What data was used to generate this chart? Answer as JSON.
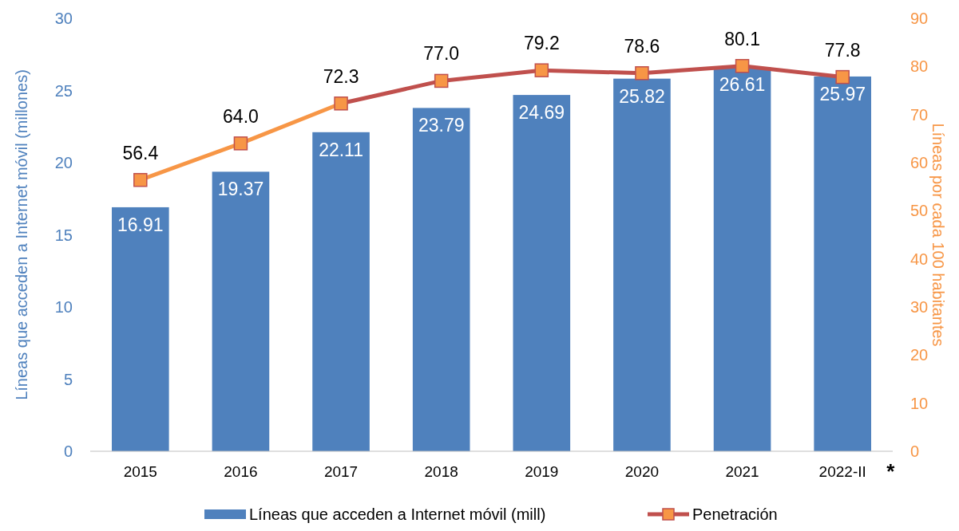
{
  "chart_data": {
    "type": "bar",
    "categories": [
      "2015",
      "2016",
      "2017",
      "2018",
      "2019",
      "2020",
      "2021",
      "2022-II"
    ],
    "ylabel": "Líneas que acceden a Internet móvil (millones)",
    "y2label": "Líneas por cada 100 habitantes",
    "ylim": [
      0,
      30
    ],
    "yticks": [
      0,
      5,
      10,
      15,
      20,
      25,
      30
    ],
    "y2lim": [
      0,
      90
    ],
    "y2ticks": [
      0,
      10,
      20,
      30,
      40,
      50,
      60,
      70,
      80,
      90
    ],
    "series": [
      {
        "name": "Líneas que acceden a Internet móvil (mill)",
        "color": "#4f81bd",
        "values": [
          16.91,
          19.37,
          22.11,
          23.79,
          24.69,
          25.82,
          26.61,
          25.97
        ]
      },
      {
        "name": "Penetración",
        "type": "line",
        "axis": "y2",
        "color": "#f79646",
        "colors": [
          "#f79646",
          "#f79646",
          "#c0504d",
          "#c0504d",
          "#c0504d",
          "#c0504d",
          "#c0504d",
          "#c0504d"
        ],
        "marker": "square",
        "values": [
          56.4,
          64.0,
          72.3,
          77.0,
          79.2,
          78.6,
          80.1,
          77.8
        ],
        "value_labels": [
          "56.4",
          "64.0",
          "72.3",
          "77.0",
          "79.2",
          "78.6",
          "80.1",
          "77.8"
        ]
      }
    ],
    "data_labels": true,
    "legend": "bottom",
    "annotations": [
      "*"
    ]
  }
}
